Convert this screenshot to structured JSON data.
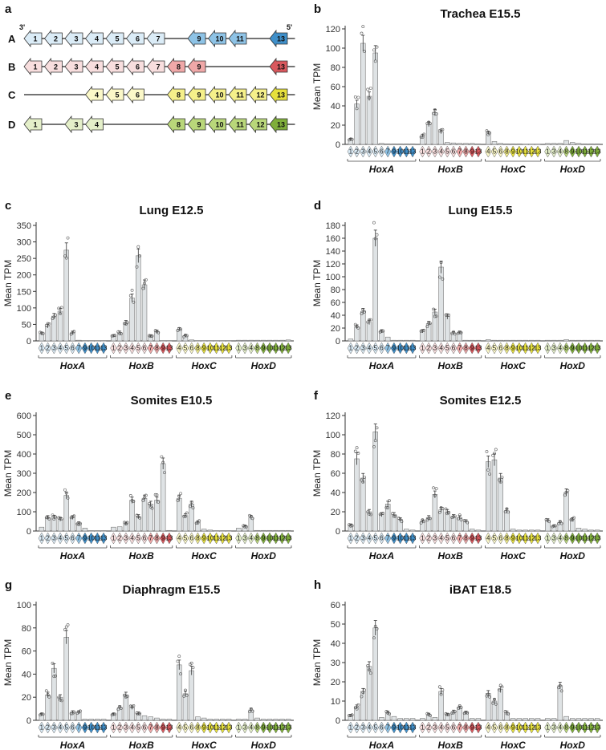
{
  "colors": {
    "A": "#8ec3e6",
    "B": "#f0a8a8",
    "C": "#f5f08a",
    "D": "#b9d77a",
    "A_dark": "#3f8fc9",
    "B_dark": "#d9585d",
    "C_dark": "#e6e03c",
    "D_dark": "#7fae3a",
    "A_light": "#dbecf7",
    "B_light": "#f8dede",
    "C_light": "#fbf8c8",
    "D_light": "#e4efc9",
    "bar": "#dfe3e5"
  },
  "panel_a": {
    "label": "a",
    "end_left": "3'",
    "end_right": "5'",
    "rows": [
      {
        "name": "A",
        "genes": [
          "1",
          "2",
          "3",
          "4",
          "5",
          "6",
          "7",
          "9",
          "10",
          "11",
          "13"
        ]
      },
      {
        "name": "B",
        "genes": [
          "1",
          "2",
          "3",
          "4",
          "5",
          "6",
          "7",
          "8",
          "9",
          "13"
        ]
      },
      {
        "name": "C",
        "genes": [
          "4",
          "5",
          "6",
          "8",
          "9",
          "10",
          "11",
          "12",
          "13"
        ]
      },
      {
        "name": "D",
        "genes": [
          "1",
          "3",
          "4",
          "8",
          "9",
          "10",
          "11",
          "12",
          "13"
        ]
      }
    ]
  },
  "x_axis": {
    "clusters": [
      "HoxA",
      "HoxB",
      "HoxC",
      "HoxD"
    ],
    "genes": {
      "A": [
        "1",
        "2",
        "3",
        "4",
        "5",
        "6",
        "7",
        "9",
        "10",
        "11",
        "13"
      ],
      "B": [
        "1",
        "2",
        "3",
        "4",
        "5",
        "6",
        "7",
        "8",
        "9",
        "13"
      ],
      "C": [
        "4",
        "5",
        "6",
        "8",
        "9",
        "10",
        "11",
        "12",
        "13"
      ],
      "D": [
        "1",
        "3",
        "4",
        "8",
        "9",
        "10",
        "11",
        "12",
        "13"
      ]
    }
  },
  "chart_data": [
    {
      "label": "b",
      "title": "Trachea E15.5",
      "type": "bar",
      "ylabel": "Mean TPM",
      "ylim": [
        0,
        120
      ],
      "yticks": [
        0,
        20,
        40,
        60,
        80,
        100,
        120
      ],
      "values": {
        "A": [
          5,
          42,
          105,
          50,
          95,
          1,
          0.5,
          0.5,
          0.5,
          0.5,
          0.5
        ],
        "B": [
          9,
          21,
          33,
          13,
          2,
          1.5,
          1,
          1,
          1,
          0.5
        ],
        "C": [
          12,
          3,
          1,
          0.5,
          0.5,
          0.5,
          0.3,
          0.3,
          0.3
        ],
        "D": [
          1,
          1,
          1,
          4,
          2,
          1,
          0.5,
          0.5,
          0.5
        ]
      }
    },
    {
      "label": "c",
      "title": "Lung E12.5",
      "type": "bar",
      "ylabel": "Mean TPM",
      "ylim": [
        0,
        350
      ],
      "yticks": [
        0,
        50,
        100,
        150,
        200,
        250,
        300,
        350
      ],
      "values": {
        "A": [
          22,
          45,
          75,
          90,
          275,
          25,
          2,
          1,
          1,
          1,
          1
        ],
        "B": [
          15,
          25,
          55,
          130,
          258,
          170,
          15,
          28,
          1,
          1
        ],
        "C": [
          35,
          15,
          3,
          1,
          1,
          1,
          1,
          1,
          1
        ],
        "D": [
          2,
          2,
          2,
          2,
          2,
          2,
          2,
          2,
          3
        ]
      }
    },
    {
      "label": "d",
      "title": "Lung E15.5",
      "type": "bar",
      "ylabel": "Mean TPM",
      "ylim": [
        0,
        180
      ],
      "yticks": [
        0,
        20,
        40,
        60,
        80,
        100,
        120,
        140,
        160,
        180
      ],
      "values": {
        "A": [
          3,
          22,
          46,
          29,
          160,
          15,
          6,
          1,
          1,
          1,
          1
        ],
        "B": [
          15,
          27,
          45,
          115,
          38,
          12,
          13,
          1,
          1,
          1
        ],
        "C": [
          2,
          1,
          1,
          1,
          1,
          1,
          1,
          1,
          1
        ],
        "D": [
          1,
          1,
          1,
          2,
          1,
          1,
          1,
          1,
          1
        ]
      }
    },
    {
      "label": "e",
      "title": "Somites E10.5",
      "type": "bar",
      "ylabel": "Mean TPM",
      "ylim": [
        0,
        600
      ],
      "yticks": [
        0,
        100,
        200,
        300,
        400,
        500,
        600
      ],
      "values": {
        "A": [
          20,
          70,
          72,
          60,
          185,
          70,
          40,
          15,
          2,
          2,
          2
        ],
        "B": [
          20,
          22,
          38,
          160,
          75,
          170,
          140,
          160,
          350,
          3
        ],
        "C": [
          170,
          80,
          140,
          45,
          10,
          5,
          2,
          2,
          2
        ],
        "D": [
          15,
          25,
          70,
          3,
          3,
          3,
          3,
          3,
          3
        ]
      }
    },
    {
      "label": "f",
      "title": "Somites E12.5",
      "type": "bar",
      "ylabel": "Mean TPM",
      "ylim": [
        0,
        120
      ],
      "yticks": [
        0,
        20,
        40,
        60,
        80,
        100,
        120
      ],
      "values": {
        "A": [
          6,
          75,
          55,
          20,
          103,
          17,
          28,
          17,
          12,
          2,
          1
        ],
        "B": [
          10,
          14,
          38,
          22,
          20,
          15,
          14,
          10,
          2,
          1
        ],
        "C": [
          72,
          74,
          55,
          21,
          2,
          1,
          1,
          1,
          1
        ],
        "D": [
          11,
          5,
          9,
          40,
          12,
          3,
          2,
          1,
          1
        ]
      }
    },
    {
      "label": "g",
      "title": "Diaphragm E15.5",
      "type": "bar",
      "ylabel": "Mean TPM",
      "ylim": [
        0,
        100
      ],
      "yticks": [
        0,
        20,
        40,
        60,
        80,
        100
      ],
      "values": {
        "A": [
          5,
          22,
          45,
          20,
          72,
          7,
          7,
          1,
          1,
          1,
          1
        ],
        "B": [
          5,
          11,
          22,
          11,
          6,
          4,
          3,
          2,
          1,
          1
        ],
        "C": [
          48,
          23,
          43,
          3,
          2,
          1,
          1,
          1,
          1
        ],
        "D": [
          1,
          1,
          9,
          2,
          1,
          1,
          1,
          1,
          1
        ]
      }
    },
    {
      "label": "h",
      "title": "iBAT  E18.5",
      "type": "bar",
      "ylabel": "Mean TPM",
      "ylim": [
        0,
        60
      ],
      "yticks": [
        0,
        10,
        20,
        30,
        40,
        50,
        60
      ],
      "values": {
        "A": [
          2.5,
          7,
          15,
          28,
          48,
          1.5,
          4,
          2,
          1,
          1,
          1
        ],
        "B": [
          1,
          3,
          1.5,
          15,
          3,
          4.5,
          6.5,
          4,
          1,
          1
        ],
        "C": [
          14,
          10,
          16,
          4,
          1,
          1,
          1,
          1,
          1
        ],
        "D": [
          1,
          1,
          18,
          2,
          1,
          1,
          1,
          1,
          1
        ]
      }
    }
  ]
}
